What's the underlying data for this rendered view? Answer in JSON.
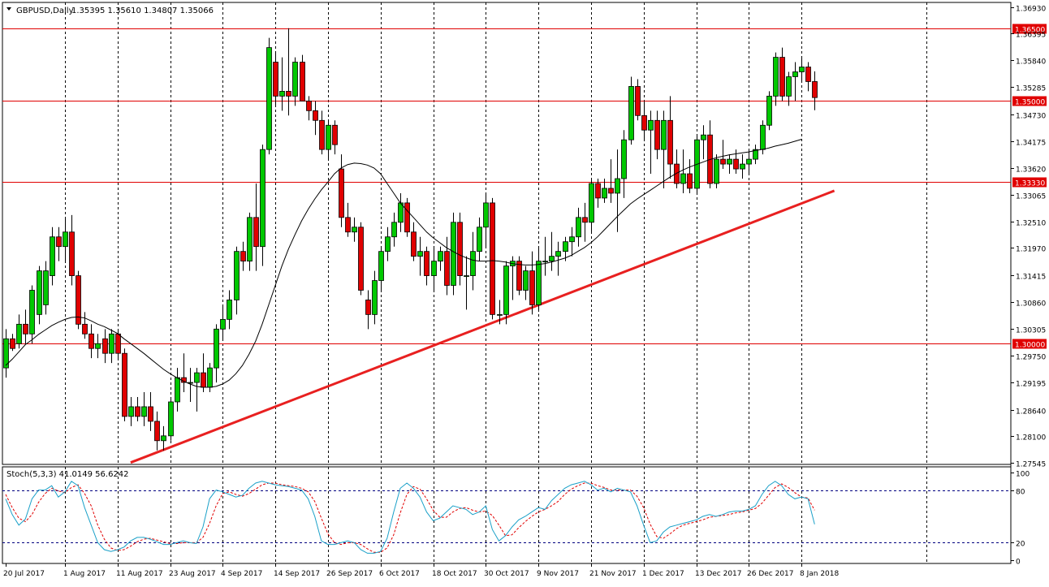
{
  "header": {
    "symbol": "GBPUSD,Daily",
    "ohlc": "1.35395 1.35610 1.34807 1.35066"
  },
  "stoch_header": "Stoch(5,3,3) 41.0149 56.6242",
  "colors": {
    "bull": "#00c800",
    "bear": "#e00000",
    "grid": "#000000",
    "hline": "#e00000",
    "trend": "#e82020",
    "ma": "#000000",
    "stoch_main": "#1aa0c8",
    "stoch_signal": "#e00000",
    "level_line": "#00007f"
  },
  "chart_data": [
    {
      "type": "candlestick",
      "ylim": [
        1.27545,
        1.3693
      ],
      "price_ticks": [
        "1.36930",
        "1.36395",
        "1.35840",
        "1.35285",
        "1.34730",
        "1.34175",
        "1.33620",
        "1.33065",
        "1.32510",
        "1.31970",
        "1.31415",
        "1.30860",
        "1.30305",
        "1.29750",
        "1.29195",
        "1.28640",
        "1.28100",
        "1.27545"
      ],
      "date_labels": [
        {
          "index": 0,
          "label": "20 Jul 2017"
        },
        {
          "index": 9,
          "label": "1 Aug 2017"
        },
        {
          "index": 17,
          "label": "11 Aug 2017"
        },
        {
          "index": 25,
          "label": "23 Aug 2017"
        },
        {
          "index": 33,
          "label": "4 Sep 2017"
        },
        {
          "index": 41,
          "label": "14 Sep 2017"
        },
        {
          "index": 49,
          "label": "26 Sep 2017"
        },
        {
          "index": 57,
          "label": "6 Oct 2017"
        },
        {
          "index": 65,
          "label": "18 Oct 2017"
        },
        {
          "index": 73,
          "label": "30 Oct 2017"
        },
        {
          "index": 81,
          "label": "9 Nov 2017"
        },
        {
          "index": 89,
          "label": "21 Nov 2017"
        },
        {
          "index": 97,
          "label": "1 Dec 2017"
        },
        {
          "index": 105,
          "label": "13 Dec 2017"
        },
        {
          "index": 113,
          "label": "26 Dec 2017"
        },
        {
          "index": 121,
          "label": "8 Jan 2018"
        }
      ],
      "horizontal_levels": [
        {
          "value": 1.365,
          "label": "1.36500"
        },
        {
          "value": 1.35,
          "label": "1.35000"
        },
        {
          "value": 1.3333,
          "label": "1.33330"
        },
        {
          "value": 1.3,
          "label": "1.30000"
        }
      ],
      "trendline": {
        "start": {
          "index": 19,
          "value": 1.2755
        },
        "end": {
          "index": 126,
          "value": 1.3315
        }
      },
      "candles": [
        [
          1.295,
          1.303,
          1.293,
          1.301
        ],
        [
          1.301,
          1.302,
          1.2985,
          1.299
        ],
        [
          1.3,
          1.306,
          1.299,
          1.304
        ],
        [
          1.304,
          1.307,
          1.3,
          1.302
        ],
        [
          1.302,
          1.312,
          1.3,
          1.311
        ],
        [
          1.306,
          1.316,
          1.304,
          1.315
        ],
        [
          1.308,
          1.317,
          1.306,
          1.315
        ],
        [
          1.314,
          1.324,
          1.312,
          1.322
        ],
        [
          1.322,
          1.324,
          1.317,
          1.32
        ],
        [
          1.32,
          1.326,
          1.317,
          1.323
        ],
        [
          1.323,
          1.3265,
          1.312,
          1.314
        ],
        [
          1.314,
          1.315,
          1.303,
          1.304
        ],
        [
          1.304,
          1.3065,
          1.301,
          1.302
        ],
        [
          1.302,
          1.304,
          1.297,
          1.299
        ],
        [
          1.299,
          1.302,
          1.297,
          1.3
        ],
        [
          1.301,
          1.303,
          1.296,
          1.298
        ],
        [
          1.298,
          1.303,
          1.296,
          1.302
        ],
        [
          1.302,
          1.303,
          1.297,
          1.298
        ],
        [
          1.298,
          1.299,
          1.284,
          1.285
        ],
        [
          1.285,
          1.289,
          1.283,
          1.287
        ],
        [
          1.287,
          1.289,
          1.284,
          1.285
        ],
        [
          1.285,
          1.29,
          1.283,
          1.287
        ],
        [
          1.287,
          1.29,
          1.282,
          1.284
        ],
        [
          1.284,
          1.286,
          1.278,
          1.28
        ],
        [
          1.28,
          1.283,
          1.278,
          1.281
        ],
        [
          1.281,
          1.289,
          1.28,
          1.288
        ],
        [
          1.288,
          1.295,
          1.286,
          1.293
        ],
        [
          1.293,
          1.298,
          1.29,
          1.292
        ],
        [
          1.292,
          1.295,
          1.288,
          1.292
        ],
        [
          1.292,
          1.295,
          1.286,
          1.294
        ],
        [
          1.294,
          1.298,
          1.29,
          1.291
        ],
        [
          1.291,
          1.296,
          1.29,
          1.295
        ],
        [
          1.295,
          1.304,
          1.292,
          1.303
        ],
        [
          1.303,
          1.308,
          1.301,
          1.305
        ],
        [
          1.305,
          1.311,
          1.303,
          1.309
        ],
        [
          1.309,
          1.32,
          1.306,
          1.319
        ],
        [
          1.319,
          1.321,
          1.315,
          1.317
        ],
        [
          1.317,
          1.327,
          1.315,
          1.326
        ],
        [
          1.326,
          1.333,
          1.315,
          1.32
        ],
        [
          1.32,
          1.341,
          1.316,
          1.34
        ],
        [
          1.34,
          1.363,
          1.339,
          1.361
        ],
        [
          1.358,
          1.36,
          1.349,
          1.351
        ],
        [
          1.351,
          1.359,
          1.348,
          1.352
        ],
        [
          1.352,
          1.365,
          1.347,
          1.351
        ],
        [
          1.351,
          1.359,
          1.349,
          1.358
        ],
        [
          1.358,
          1.3595,
          1.35,
          1.35
        ],
        [
          1.35,
          1.351,
          1.346,
          1.348
        ],
        [
          1.348,
          1.35,
          1.343,
          1.346
        ],
        [
          1.346,
          1.348,
          1.339,
          1.34
        ],
        [
          1.34,
          1.346,
          1.338,
          1.345
        ],
        [
          1.345,
          1.346,
          1.339,
          1.341
        ],
        [
          1.336,
          1.339,
          1.324,
          1.326
        ],
        [
          1.326,
          1.329,
          1.322,
          1.323
        ],
        [
          1.323,
          1.326,
          1.321,
          1.324
        ],
        [
          1.324,
          1.325,
          1.31,
          1.311
        ],
        [
          1.309,
          1.311,
          1.303,
          1.306
        ],
        [
          1.306,
          1.315,
          1.304,
          1.313
        ],
        [
          1.313,
          1.32,
          1.311,
          1.319
        ],
        [
          1.319,
          1.324,
          1.317,
          1.322
        ],
        [
          1.322,
          1.327,
          1.32,
          1.325
        ],
        [
          1.325,
          1.331,
          1.323,
          1.329
        ],
        [
          1.329,
          1.33,
          1.322,
          1.323
        ],
        [
          1.323,
          1.325,
          1.317,
          1.318
        ],
        [
          1.318,
          1.322,
          1.314,
          1.319
        ],
        [
          1.319,
          1.32,
          1.312,
          1.314
        ],
        [
          1.314,
          1.32,
          1.311,
          1.317
        ],
        [
          1.317,
          1.32,
          1.315,
          1.319
        ],
        [
          1.319,
          1.322,
          1.31,
          1.312
        ],
        [
          1.312,
          1.327,
          1.31,
          1.325
        ],
        [
          1.325,
          1.327,
          1.312,
          1.314
        ],
        [
          1.314,
          1.318,
          1.307,
          1.314
        ],
        [
          1.314,
          1.323,
          1.311,
          1.319
        ],
        [
          1.319,
          1.326,
          1.317,
          1.324
        ],
        [
          1.324,
          1.331,
          1.32,
          1.329
        ],
        [
          1.329,
          1.33,
          1.305,
          1.306
        ],
        [
          1.306,
          1.309,
          1.304,
          1.306
        ],
        [
          1.306,
          1.317,
          1.304,
          1.316
        ],
        [
          1.316,
          1.318,
          1.309,
          1.317
        ],
        [
          1.317,
          1.318,
          1.31,
          1.311
        ],
        [
          1.311,
          1.316,
          1.309,
          1.315
        ],
        [
          1.315,
          1.319,
          1.306,
          1.308
        ],
        [
          1.308,
          1.32,
          1.307,
          1.317
        ],
        [
          1.317,
          1.322,
          1.314,
          1.317
        ],
        [
          1.317,
          1.323,
          1.315,
          1.318
        ],
        [
          1.318,
          1.321,
          1.314,
          1.319
        ],
        [
          1.319,
          1.322,
          1.317,
          1.321
        ],
        [
          1.321,
          1.324,
          1.318,
          1.322
        ],
        [
          1.322,
          1.328,
          1.32,
          1.326
        ],
        [
          1.326,
          1.329,
          1.321,
          1.325
        ],
        [
          1.325,
          1.334,
          1.323,
          1.333
        ],
        [
          1.333,
          1.334,
          1.328,
          1.33
        ],
        [
          1.33,
          1.334,
          1.329,
          1.332
        ],
        [
          1.332,
          1.338,
          1.329,
          1.331
        ],
        [
          1.331,
          1.34,
          1.323,
          1.334
        ],
        [
          1.334,
          1.344,
          1.33,
          1.342
        ],
        [
          1.342,
          1.355,
          1.341,
          1.353
        ],
        [
          1.353,
          1.3545,
          1.346,
          1.347
        ],
        [
          1.347,
          1.35,
          1.342,
          1.344
        ],
        [
          1.344,
          1.348,
          1.335,
          1.346
        ],
        [
          1.346,
          1.348,
          1.338,
          1.34
        ],
        [
          1.34,
          1.348,
          1.332,
          1.346
        ],
        [
          1.346,
          1.351,
          1.334,
          1.337
        ],
        [
          1.337,
          1.34,
          1.332,
          1.333
        ],
        [
          1.333,
          1.34,
          1.331,
          1.335
        ],
        [
          1.335,
          1.338,
          1.331,
          1.332
        ],
        [
          1.332,
          1.343,
          1.331,
          1.342
        ],
        [
          1.342,
          1.345,
          1.338,
          1.343
        ],
        [
          1.343,
          1.346,
          1.332,
          1.333
        ],
        [
          1.333,
          1.339,
          1.332,
          1.338
        ],
        [
          1.338,
          1.342,
          1.336,
          1.337
        ],
        [
          1.337,
          1.339,
          1.335,
          1.338
        ],
        [
          1.338,
          1.34,
          1.335,
          1.336
        ],
        [
          1.336,
          1.339,
          1.334,
          1.337
        ],
        [
          1.337,
          1.34,
          1.335,
          1.338
        ],
        [
          1.338,
          1.341,
          1.337,
          1.34
        ],
        [
          1.34,
          1.346,
          1.339,
          1.345
        ],
        [
          1.345,
          1.352,
          1.344,
          1.351
        ],
        [
          1.351,
          1.36,
          1.349,
          1.359
        ],
        [
          1.359,
          1.361,
          1.35,
          1.351
        ],
        [
          1.351,
          1.356,
          1.349,
          1.355
        ],
        [
          1.355,
          1.358,
          1.35,
          1.356
        ],
        [
          1.356,
          1.359,
          1.354,
          1.357
        ],
        [
          1.357,
          1.358,
          1.352,
          1.354
        ],
        [
          1.354,
          1.3561,
          1.3481,
          1.3507
        ]
      ],
      "moving_average": [
        1.2955,
        1.2968,
        1.2983,
        1.2998,
        1.3008,
        1.3019,
        1.3028,
        1.3037,
        1.3044,
        1.305,
        1.3054,
        1.3055,
        1.3053,
        1.3047,
        1.304,
        1.3035,
        1.3028,
        1.3021,
        1.301,
        1.3,
        1.299,
        1.298,
        1.2969,
        1.2958,
        1.2947,
        1.2938,
        1.293,
        1.2923,
        1.2917,
        1.2912,
        1.291,
        1.291,
        1.2912,
        1.2917,
        1.2925,
        1.2938,
        1.2955,
        1.2978,
        1.3005,
        1.304,
        1.308,
        1.312,
        1.316,
        1.3195,
        1.3225,
        1.3253,
        1.3277,
        1.3298,
        1.3317,
        1.3333,
        1.335,
        1.3362,
        1.3369,
        1.3372,
        1.3371,
        1.3368,
        1.3362,
        1.335,
        1.333,
        1.331,
        1.329,
        1.3275,
        1.326,
        1.3245,
        1.323,
        1.3218,
        1.3208,
        1.3198,
        1.319,
        1.3183,
        1.3177,
        1.3172,
        1.317,
        1.317,
        1.3171,
        1.317,
        1.3168,
        1.3165,
        1.3163,
        1.3162,
        1.3162,
        1.3163,
        1.3165,
        1.3168,
        1.3172,
        1.3176,
        1.3182,
        1.319,
        1.3198,
        1.3208,
        1.322,
        1.3234,
        1.3248,
        1.3262,
        1.3275,
        1.3288,
        1.3298,
        1.3307,
        1.3316,
        1.3325,
        1.3334,
        1.3343,
        1.3351,
        1.3358,
        1.3364,
        1.3369,
        1.3374,
        1.3379,
        1.3383,
        1.3386,
        1.3389,
        1.3391,
        1.3393,
        1.3395,
        1.3398,
        1.34,
        1.3403,
        1.3407,
        1.341,
        1.3413,
        1.3417,
        1.3421
      ]
    },
    {
      "type": "line",
      "title": "Stoch(5,3,3)",
      "ylim": [
        0,
        100
      ],
      "y_ticks": [
        "100",
        "80",
        "20",
        "0"
      ],
      "levels": [
        80,
        20
      ],
      "series": [
        {
          "values": [
            70,
            52,
            40,
            47,
            70,
            80,
            80,
            85,
            72,
            78,
            90,
            85,
            60,
            40,
            20,
            12,
            10,
            12,
            15,
            22,
            26,
            26,
            24,
            21,
            18,
            18,
            20,
            22,
            20,
            19,
            38,
            70,
            80,
            78,
            75,
            72,
            74,
            82,
            88,
            90,
            88,
            86,
            85,
            84,
            82,
            80,
            70,
            50,
            22,
            18,
            18,
            20,
            22,
            20,
            12,
            8,
            8,
            10,
            25,
            55,
            82,
            88,
            82,
            72,
            55,
            45,
            48,
            55,
            62,
            60,
            58,
            52,
            55,
            62,
            35,
            22,
            28,
            38,
            46,
            50,
            55,
            60,
            58,
            68,
            75,
            82,
            86,
            88,
            90,
            86,
            80,
            82,
            78,
            82,
            80,
            78,
            62,
            40,
            20,
            22,
            32,
            38,
            40,
            42,
            44,
            46,
            50,
            52,
            50,
            52,
            55,
            56,
            56,
            58,
            62,
            75,
            85,
            90,
            85,
            75,
            70,
            72,
            70,
            41
          ]
        },
        {
          "values": [
            75,
            60,
            48,
            44,
            52,
            66,
            76,
            82,
            79,
            77,
            83,
            86,
            76,
            62,
            40,
            24,
            14,
            11,
            12,
            16,
            21,
            24,
            25,
            23,
            21,
            19,
            19,
            20,
            20,
            20,
            26,
            42,
            62,
            76,
            78,
            75,
            73,
            76,
            81,
            86,
            88,
            88,
            86,
            85,
            84,
            82,
            78,
            67,
            48,
            30,
            20,
            18,
            20,
            20,
            18,
            13,
            9,
            9,
            14,
            29,
            54,
            75,
            84,
            81,
            70,
            57,
            49,
            49,
            55,
            59,
            60,
            57,
            55,
            56,
            51,
            40,
            28,
            29,
            37,
            44,
            50,
            55,
            58,
            62,
            67,
            75,
            81,
            85,
            88,
            88,
            85,
            83,
            80,
            80,
            80,
            80,
            73,
            60,
            41,
            27,
            25,
            30,
            36,
            40,
            42,
            44,
            46,
            49,
            50,
            51,
            52,
            54,
            55,
            57,
            59,
            65,
            74,
            83,
            87,
            83,
            77,
            72,
            71,
            57
          ]
        }
      ]
    }
  ]
}
